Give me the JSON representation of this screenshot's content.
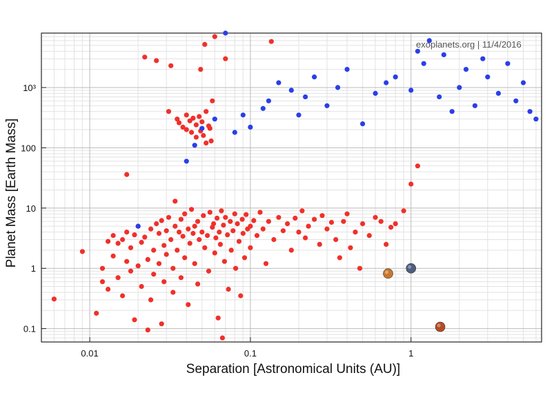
{
  "chart_data": {
    "type": "scatter",
    "credit": "exoplanets.org | 11/4/2016",
    "xlabel": "Separation [Astronomical Units (AU)]",
    "ylabel": "Planet Mass [Earth Mass]",
    "x_scale": "log",
    "y_scale": "log",
    "xlim": [
      0.005,
      6.5
    ],
    "ylim": [
      0.06,
      8000
    ],
    "x_ticks": [
      {
        "value": 0.01,
        "label": "0.01"
      },
      {
        "value": 0.1,
        "label": "0.1"
      },
      {
        "value": 1,
        "label": "1"
      }
    ],
    "y_ticks": [
      {
        "value": 0.1,
        "label": "0.1"
      },
      {
        "value": 1,
        "label": "1"
      },
      {
        "value": 10,
        "label": "10"
      },
      {
        "value": 100,
        "label": "100"
      },
      {
        "value": 1000,
        "label": "10³"
      }
    ],
    "grid": true,
    "colors": {
      "red": "#f0302a",
      "blue": "#2a3fe8"
    },
    "series": [
      {
        "color": "red",
        "points": [
          [
            0.006,
            0.31
          ],
          [
            0.009,
            1.9
          ],
          [
            0.011,
            0.18
          ],
          [
            0.012,
            1.0
          ],
          [
            0.012,
            0.6
          ],
          [
            0.013,
            2.8
          ],
          [
            0.013,
            0.45
          ],
          [
            0.014,
            3.5
          ],
          [
            0.014,
            1.6
          ],
          [
            0.015,
            2.6
          ],
          [
            0.015,
            0.7
          ],
          [
            0.016,
            3.0
          ],
          [
            0.016,
            0.35
          ],
          [
            0.017,
            4.0
          ],
          [
            0.017,
            1.3
          ],
          [
            0.017,
            36
          ],
          [
            0.018,
            2.2
          ],
          [
            0.018,
            0.9
          ],
          [
            0.019,
            0.14
          ],
          [
            0.019,
            3.6
          ],
          [
            0.02,
            1.1
          ],
          [
            0.02,
            5.0
          ],
          [
            0.021,
            2.7
          ],
          [
            0.021,
            0.5
          ],
          [
            0.022,
            3200
          ],
          [
            0.022,
            3.3
          ],
          [
            0.023,
            0.095
          ],
          [
            0.023,
            1.4
          ],
          [
            0.024,
            4.5
          ],
          [
            0.024,
            0.3
          ],
          [
            0.025,
            2.0
          ],
          [
            0.025,
            0.8
          ],
          [
            0.026,
            5.5
          ],
          [
            0.026,
            2800
          ],
          [
            0.027,
            1.2
          ],
          [
            0.027,
            3.8
          ],
          [
            0.028,
            0.12
          ],
          [
            0.028,
            6.2
          ],
          [
            0.029,
            2.4
          ],
          [
            0.029,
            0.6
          ],
          [
            0.03,
            4.2
          ],
          [
            0.03,
            1.7
          ],
          [
            0.031,
            7.0
          ],
          [
            0.031,
            400
          ],
          [
            0.032,
            2300
          ],
          [
            0.032,
            3.0
          ],
          [
            0.033,
            0.4
          ],
          [
            0.033,
            1.0
          ],
          [
            0.034,
            5.0
          ],
          [
            0.034,
            13
          ],
          [
            0.035,
            2.0
          ],
          [
            0.035,
            300
          ],
          [
            0.036,
            4.0
          ],
          [
            0.036,
            260
          ],
          [
            0.037,
            6.5
          ],
          [
            0.037,
            0.7
          ],
          [
            0.038,
            3.4
          ],
          [
            0.038,
            220
          ],
          [
            0.039,
            1.5
          ],
          [
            0.039,
            8.0
          ],
          [
            0.04,
            350
          ],
          [
            0.04,
            200
          ],
          [
            0.041,
            4.5
          ],
          [
            0.041,
            0.25
          ],
          [
            0.042,
            2.6
          ],
          [
            0.042,
            280
          ],
          [
            0.043,
            9.5
          ],
          [
            0.043,
            180
          ],
          [
            0.044,
            3.8
          ],
          [
            0.044,
            310
          ],
          [
            0.045,
            1.2
          ],
          [
            0.045,
            5.0
          ],
          [
            0.046,
            240
          ],
          [
            0.046,
            150
          ],
          [
            0.047,
            6.0
          ],
          [
            0.047,
            0.55
          ],
          [
            0.048,
            330
          ],
          [
            0.048,
            3.0
          ],
          [
            0.049,
            2000
          ],
          [
            0.049,
            190
          ],
          [
            0.05,
            4.0
          ],
          [
            0.05,
            270
          ],
          [
            0.051,
            7.5
          ],
          [
            0.051,
            160
          ],
          [
            0.052,
            5200
          ],
          [
            0.052,
            2.2
          ],
          [
            0.053,
            400
          ],
          [
            0.053,
            120
          ],
          [
            0.054,
            3.5
          ],
          [
            0.055,
            230
          ],
          [
            0.055,
            0.9
          ],
          [
            0.056,
            8.5
          ],
          [
            0.056,
            210
          ],
          [
            0.057,
            130
          ],
          [
            0.058,
            4.8
          ],
          [
            0.058,
            600
          ],
          [
            0.059,
            5.5
          ],
          [
            0.06,
            1.8
          ],
          [
            0.06,
            7000
          ],
          [
            0.061,
            3.2
          ],
          [
            0.062,
            6.8
          ],
          [
            0.063,
            0.15
          ],
          [
            0.064,
            4.0
          ],
          [
            0.065,
            2.5
          ],
          [
            0.066,
            9.0
          ],
          [
            0.067,
            0.07
          ],
          [
            0.068,
            5.2
          ],
          [
            0.069,
            1.3
          ],
          [
            0.07,
            7.0
          ],
          [
            0.07,
            3000
          ],
          [
            0.072,
            3.6
          ],
          [
            0.073,
            0.45
          ],
          [
            0.075,
            6.0
          ],
          [
            0.076,
            2.0
          ],
          [
            0.078,
            4.2
          ],
          [
            0.08,
            8.0
          ],
          [
            0.081,
            1.0
          ],
          [
            0.083,
            5.5
          ],
          [
            0.085,
            2.8
          ],
          [
            0.087,
            0.35
          ],
          [
            0.089,
            6.5
          ],
          [
            0.09,
            3.8
          ],
          [
            0.092,
            1.5
          ],
          [
            0.094,
            7.8
          ],
          [
            0.096,
            4.5
          ],
          [
            0.1,
            5.0
          ],
          [
            0.1,
            2.2
          ],
          [
            0.105,
            6.2
          ],
          [
            0.11,
            3.5
          ],
          [
            0.115,
            8.5
          ],
          [
            0.12,
            4.5
          ],
          [
            0.125,
            1.2
          ],
          [
            0.13,
            6.0
          ],
          [
            0.135,
            5800
          ],
          [
            0.14,
            3.0
          ],
          [
            0.15,
            7.0
          ],
          [
            0.16,
            4.2
          ],
          [
            0.17,
            5.5
          ],
          [
            0.18,
            2.0
          ],
          [
            0.19,
            6.8
          ],
          [
            0.2,
            4.0
          ],
          [
            0.21,
            9.0
          ],
          [
            0.22,
            3.2
          ],
          [
            0.23,
            5.0
          ],
          [
            0.25,
            6.5
          ],
          [
            0.27,
            2.5
          ],
          [
            0.28,
            7.5
          ],
          [
            0.3,
            4.5
          ],
          [
            0.32,
            5.8
          ],
          [
            0.34,
            3.0
          ],
          [
            0.36,
            1.5
          ],
          [
            0.38,
            6.0
          ],
          [
            0.4,
            8.0
          ],
          [
            0.42,
            2.2
          ],
          [
            0.45,
            4.0
          ],
          [
            0.48,
            1.0
          ],
          [
            0.5,
            5.5
          ],
          [
            0.55,
            3.5
          ],
          [
            0.6,
            7.0
          ],
          [
            0.65,
            6.0
          ],
          [
            0.7,
            2.5
          ],
          [
            0.75,
            4.8
          ],
          [
            0.8,
            5.5
          ],
          [
            0.9,
            9.0
          ],
          [
            1.0,
            25
          ],
          [
            1.1,
            50
          ]
        ]
      },
      {
        "color": "blue",
        "points": [
          [
            0.02,
            5.0
          ],
          [
            0.04,
            60
          ],
          [
            0.045,
            110
          ],
          [
            0.05,
            210
          ],
          [
            0.06,
            300
          ],
          [
            0.07,
            8000
          ],
          [
            0.08,
            180
          ],
          [
            0.09,
            350
          ],
          [
            0.1,
            220
          ],
          [
            0.12,
            450
          ],
          [
            0.13,
            600
          ],
          [
            0.15,
            1200
          ],
          [
            0.18,
            900
          ],
          [
            0.2,
            350
          ],
          [
            0.22,
            700
          ],
          [
            0.25,
            1500
          ],
          [
            0.3,
            500
          ],
          [
            0.35,
            1000
          ],
          [
            0.4,
            2000
          ],
          [
            0.5,
            250
          ],
          [
            0.6,
            800
          ],
          [
            0.7,
            1200
          ],
          [
            0.8,
            1500
          ],
          [
            1.0,
            900
          ],
          [
            1.1,
            4000
          ],
          [
            1.2,
            2500
          ],
          [
            1.3,
            6000
          ],
          [
            1.5,
            700
          ],
          [
            1.6,
            3500
          ],
          [
            1.8,
            400
          ],
          [
            2.0,
            1000
          ],
          [
            2.2,
            2000
          ],
          [
            2.5,
            500
          ],
          [
            2.8,
            3000
          ],
          [
            3.0,
            1500
          ],
          [
            3.5,
            800
          ],
          [
            4.0,
            2500
          ],
          [
            4.5,
            600
          ],
          [
            5.0,
            1200
          ],
          [
            5.5,
            400
          ],
          [
            6.0,
            300
          ]
        ]
      }
    ],
    "solar_system": [
      {
        "name": "venus-icon",
        "x": 0.72,
        "y": 0.82,
        "color": "#c8782c"
      },
      {
        "name": "earth-icon",
        "x": 1.0,
        "y": 1.0,
        "color": "#4d5f80"
      },
      {
        "name": "mars-icon",
        "x": 1.52,
        "y": 0.107,
        "color": "#b64b23"
      }
    ]
  }
}
